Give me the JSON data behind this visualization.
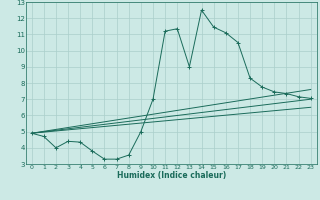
{
  "xlabel": "Humidex (Indice chaleur)",
  "bg_color": "#cce9e5",
  "grid_color": "#aacfcb",
  "line_color": "#1a6b5a",
  "xlim": [
    -0.5,
    23.5
  ],
  "ylim": [
    3,
    13
  ],
  "xticks": [
    0,
    1,
    2,
    3,
    4,
    5,
    6,
    7,
    8,
    9,
    10,
    11,
    12,
    13,
    14,
    15,
    16,
    17,
    18,
    19,
    20,
    21,
    22,
    23
  ],
  "yticks": [
    3,
    4,
    5,
    6,
    7,
    8,
    9,
    10,
    11,
    12,
    13
  ],
  "main_x": [
    0,
    1,
    2,
    3,
    4,
    5,
    6,
    7,
    8,
    9,
    10,
    11,
    12,
    13,
    14,
    15,
    16,
    17,
    18,
    19,
    20,
    21,
    22,
    23
  ],
  "main_y": [
    4.9,
    4.7,
    4.0,
    4.4,
    4.35,
    3.8,
    3.3,
    3.3,
    3.55,
    5.0,
    7.0,
    11.2,
    11.35,
    9.0,
    12.5,
    11.45,
    11.1,
    10.5,
    8.3,
    7.75,
    7.45,
    7.35,
    7.15,
    7.05
  ],
  "line1_x": [
    0,
    23
  ],
  "line1_y": [
    4.9,
    6.5
  ],
  "line2_x": [
    0,
    23
  ],
  "line2_y": [
    4.9,
    7.0
  ],
  "line3_x": [
    0,
    23
  ],
  "line3_y": [
    4.9,
    7.6
  ]
}
